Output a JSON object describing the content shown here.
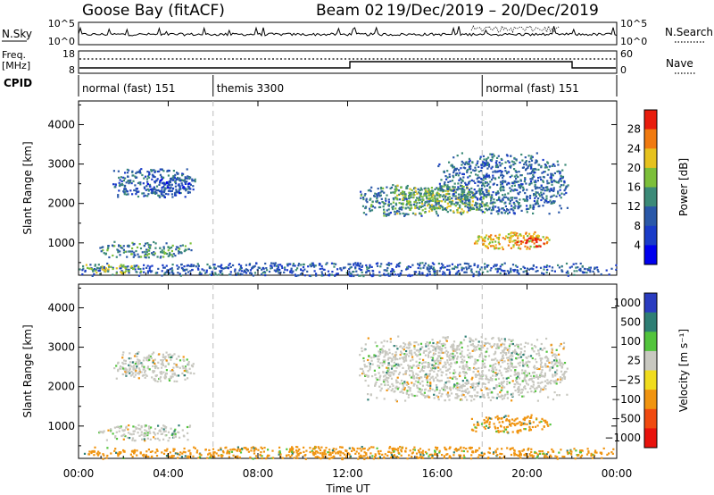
{
  "header": {
    "station": "Goose Bay (fitACF)",
    "beam": "Beam 02",
    "date_range": "19/Dec/2019 – 20/Dec/2019"
  },
  "noise_panel": {
    "left_label": "N.Sky",
    "left_ticks": [
      "10^5",
      "10^0"
    ],
    "right_ticks": [
      "10^5",
      "10^0"
    ],
    "right_label": "N.Search"
  },
  "freq_panel": {
    "left_label_1": "Freq.",
    "left_label_2": "[MHz]",
    "left_ticks": [
      "18",
      "8"
    ],
    "right_ticks": [
      "60",
      "0"
    ],
    "right_label": "Nave"
  },
  "cpid_panel": {
    "label": "CPID",
    "segments": [
      {
        "name": "normal (fast) 151",
        "start_hour": 0,
        "end_hour": 6
      },
      {
        "name": "themis 3300",
        "start_hour": 6,
        "end_hour": 18
      },
      {
        "name": "normal (fast) 151",
        "start_hour": 18,
        "end_hour": 24
      }
    ]
  },
  "x_axis": {
    "label": "Time UT",
    "ticks": [
      "00:00",
      "04:00",
      "08:00",
      "12:00",
      "16:00",
      "20:00",
      "00:00"
    ],
    "tick_hours": [
      0,
      4,
      8,
      12,
      16,
      20,
      24
    ],
    "range_hours": [
      0,
      24
    ]
  },
  "colors": {
    "noise_line": "#000000",
    "divider": "#bbbbbb",
    "ground": "#c8c8c0"
  },
  "chart_data": [
    {
      "type": "heatmap",
      "quantity": "power",
      "ylabel": "Slant Range [km]",
      "y_ticks": [
        "1000",
        "2000",
        "3000",
        "4000"
      ],
      "y_tick_values": [
        1000,
        2000,
        3000,
        4000
      ],
      "ylim": [
        180,
        4600
      ],
      "colorbar_label": "Power [dB]",
      "colorbar_ticks": [
        "28",
        "24",
        "20",
        "16",
        "12",
        "8",
        "4"
      ],
      "colorbar_levels": [
        {
          "value": 0,
          "color": "#0000ee"
        },
        {
          "value": 4,
          "color": "#1a3cc8"
        },
        {
          "value": 8,
          "color": "#2a58a8"
        },
        {
          "value": 12,
          "color": "#3c8a78"
        },
        {
          "value": 16,
          "color": "#7cbf3a"
        },
        {
          "value": 20,
          "color": "#e6c21e"
        },
        {
          "value": 24,
          "color": "#f07a10"
        },
        {
          "value": 28,
          "color": "#e81c0c"
        }
      ],
      "echo_regions": [
        {
          "t_start": 1.5,
          "t_end": 5.2,
          "r_min": 2150,
          "r_max": 2900,
          "value": 8
        },
        {
          "t_start": 3.0,
          "t_end": 5.0,
          "r_min": 2200,
          "r_max": 2700,
          "value": 6
        },
        {
          "t_start": 0.8,
          "t_end": 5.0,
          "r_min": 650,
          "r_max": 1050,
          "value": 11
        },
        {
          "t_start": 0.0,
          "t_end": 24.0,
          "r_min": 180,
          "r_max": 520,
          "value": 7
        },
        {
          "t_start": 0.3,
          "t_end": 2.8,
          "r_min": 250,
          "r_max": 480,
          "value": 17
        },
        {
          "t_start": 12.5,
          "t_end": 16.0,
          "r_min": 1700,
          "r_max": 2500,
          "value": 10
        },
        {
          "t_start": 14.0,
          "t_end": 18.5,
          "r_min": 1750,
          "r_max": 2500,
          "value": 16
        },
        {
          "t_start": 16.0,
          "t_end": 21.8,
          "r_min": 1750,
          "r_max": 3300,
          "value": 9
        },
        {
          "t_start": 17.5,
          "t_end": 21.0,
          "r_min": 850,
          "r_max": 1300,
          "value": 21
        },
        {
          "t_start": 19.5,
          "t_end": 20.8,
          "r_min": 900,
          "r_max": 1150,
          "value": 27
        }
      ]
    },
    {
      "type": "heatmap",
      "quantity": "velocity",
      "ylabel": "Slant Range [km]",
      "y_ticks": [
        "1000",
        "2000",
        "3000",
        "4000"
      ],
      "y_tick_values": [
        1000,
        2000,
        3000,
        4000
      ],
      "ylim": [
        180,
        4600
      ],
      "colorbar_label": "Velocity [m s⁻¹]",
      "colorbar_ticks": [
        "1000",
        "500",
        "100",
        "25",
        "−25",
        "−100",
        "−500",
        "−1000"
      ],
      "colorbar_levels": [
        {
          "value": 1000,
          "color": "#2a3cc0"
        },
        {
          "value": 500,
          "color": "#2e7e74"
        },
        {
          "value": 100,
          "color": "#52c43c"
        },
        {
          "value": 25,
          "color": "#c8c8c0"
        },
        {
          "value": -25,
          "color": "#f0dc1e"
        },
        {
          "value": -100,
          "color": "#f09410"
        },
        {
          "value": -500,
          "color": "#f04a10"
        },
        {
          "value": -1000,
          "color": "#e8120c"
        }
      ],
      "echo_regions": [
        {
          "t_start": 1.5,
          "t_end": 5.2,
          "r_min": 2150,
          "r_max": 2900,
          "value": 0
        },
        {
          "t_start": 0.8,
          "t_end": 5.0,
          "r_min": 650,
          "r_max": 1050,
          "value": 0
        },
        {
          "t_start": 0.0,
          "t_end": 24.0,
          "r_min": 180,
          "r_max": 500,
          "value": -150
        },
        {
          "t_start": 12.5,
          "t_end": 21.8,
          "r_min": 1650,
          "r_max": 3300,
          "value": 0
        },
        {
          "t_start": 17.5,
          "t_end": 21.0,
          "r_min": 850,
          "r_max": 1300,
          "value": -200
        }
      ]
    }
  ]
}
